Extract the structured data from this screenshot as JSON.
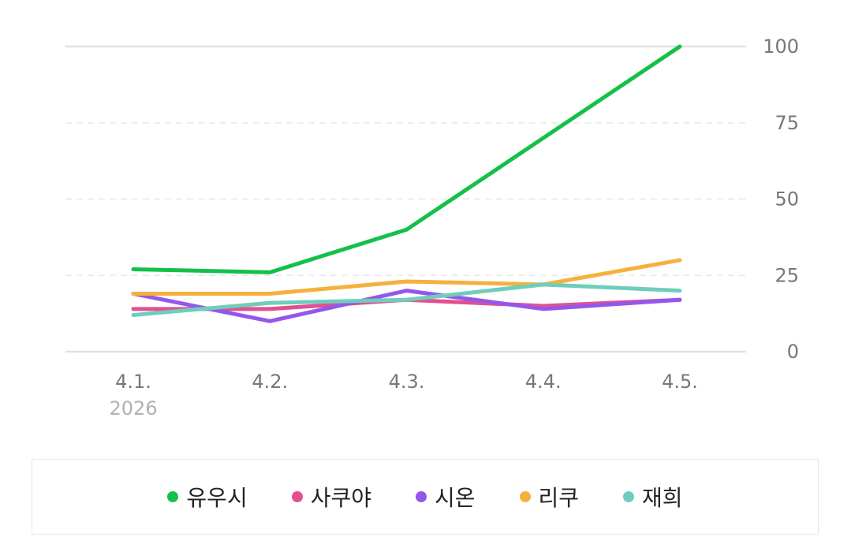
{
  "chart_data": {
    "type": "line",
    "x": [
      "4.1.",
      "4.2.",
      "4.3.",
      "4.4.",
      "4.5."
    ],
    "x_sublabels": [
      "2026",
      "",
      "",
      "",
      ""
    ],
    "ylim": [
      0,
      100
    ],
    "yticks": [
      "0",
      "25",
      "50",
      "75",
      "100"
    ],
    "y_axis_side": "right",
    "grid": "horizontal dashed",
    "legend_position": "bottom",
    "series": [
      {
        "name": "유우시",
        "color": "#14c04a",
        "values": [
          27,
          26,
          40,
          70,
          100
        ]
      },
      {
        "name": "사쿠야",
        "color": "#e2508f",
        "values": [
          14,
          14,
          17,
          15,
          17
        ]
      },
      {
        "name": "시온",
        "color": "#9457eb",
        "values": [
          19,
          10,
          20,
          14,
          17
        ]
      },
      {
        "name": "리쿠",
        "color": "#f5b13d",
        "values": [
          19,
          19,
          23,
          22,
          30
        ]
      },
      {
        "name": "재희",
        "color": "#6ecdbd",
        "values": [
          12,
          16,
          17,
          22,
          20
        ]
      }
    ]
  }
}
